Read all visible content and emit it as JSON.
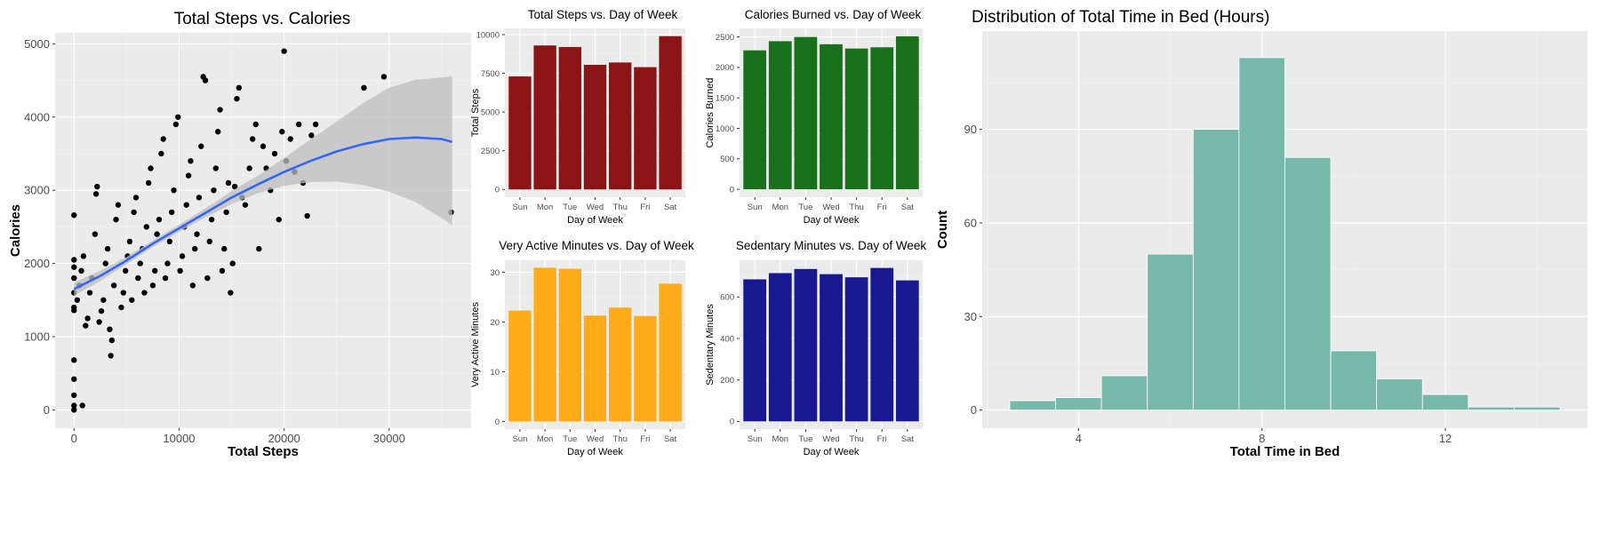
{
  "chart_data": [
    {
      "id": "scatter",
      "type": "scatter",
      "title": "Total Steps vs. Calories",
      "xlabel": "Total Steps",
      "ylabel": "Calories",
      "xlim": [
        -1800,
        37800
      ],
      "ylim": [
        -250,
        5150
      ],
      "xticks": [
        0,
        10000,
        20000,
        30000
      ],
      "yticks": [
        0,
        1000,
        2000,
        3000,
        4000,
        5000
      ],
      "grid": true,
      "point_color": "#000000",
      "smooth_color": "#3366ff",
      "ribbon_color": "#bdbdbd",
      "smooth": [
        {
          "x": 0,
          "y": 1650,
          "lo": 1560,
          "hi": 1740
        },
        {
          "x": 2500,
          "y": 1830,
          "lo": 1760,
          "hi": 1900
        },
        {
          "x": 5000,
          "y": 2040,
          "lo": 1990,
          "hi": 2090
        },
        {
          "x": 7500,
          "y": 2270,
          "lo": 2225,
          "hi": 2315
        },
        {
          "x": 10000,
          "y": 2480,
          "lo": 2430,
          "hi": 2530
        },
        {
          "x": 12500,
          "y": 2690,
          "lo": 2630,
          "hi": 2750
        },
        {
          "x": 15000,
          "y": 2900,
          "lo": 2810,
          "hi": 2990
        },
        {
          "x": 17500,
          "y": 3080,
          "lo": 2960,
          "hi": 3200
        },
        {
          "x": 20000,
          "y": 3250,
          "lo": 3060,
          "hi": 3440
        },
        {
          "x": 22500,
          "y": 3400,
          "lo": 3110,
          "hi": 3690
        },
        {
          "x": 25000,
          "y": 3530,
          "lo": 3120,
          "hi": 3940
        },
        {
          "x": 27500,
          "y": 3630,
          "lo": 3070,
          "hi": 4190
        },
        {
          "x": 30000,
          "y": 3700,
          "lo": 2980,
          "hi": 4400
        },
        {
          "x": 32500,
          "y": 3720,
          "lo": 2840,
          "hi": 4510
        },
        {
          "x": 35000,
          "y": 3700,
          "lo": 2620,
          "hi": 4540
        },
        {
          "x": 36000,
          "y": 3660,
          "lo": 2520,
          "hi": 4560
        }
      ],
      "points": [
        [
          0,
          0
        ],
        [
          0,
          60
        ],
        [
          0,
          200
        ],
        [
          0,
          420
        ],
        [
          0,
          680
        ],
        [
          800,
          60
        ],
        [
          0,
          2660
        ],
        [
          0,
          1360
        ],
        [
          0,
          1400
        ],
        [
          0,
          1600
        ],
        [
          0,
          1800
        ],
        [
          0,
          1950
        ],
        [
          0,
          2050
        ],
        [
          300,
          1500
        ],
        [
          500,
          1700
        ],
        [
          700,
          1900
        ],
        [
          900,
          2100
        ],
        [
          1100,
          1150
        ],
        [
          1300,
          1250
        ],
        [
          1500,
          1600
        ],
        [
          1700,
          1800
        ],
        [
          2000,
          2400
        ],
        [
          2100,
          2950
        ],
        [
          2200,
          3050
        ],
        [
          2400,
          1200
        ],
        [
          2600,
          1350
        ],
        [
          2800,
          1500
        ],
        [
          3000,
          2000
        ],
        [
          3200,
          2200
        ],
        [
          3400,
          1100
        ],
        [
          3500,
          740
        ],
        [
          3600,
          950
        ],
        [
          3800,
          1700
        ],
        [
          4000,
          2600
        ],
        [
          4200,
          2800
        ],
        [
          4500,
          1400
        ],
        [
          4700,
          1600
        ],
        [
          4900,
          1900
        ],
        [
          5100,
          2100
        ],
        [
          5300,
          2300
        ],
        [
          5500,
          1500
        ],
        [
          5700,
          2700
        ],
        [
          5900,
          2900
        ],
        [
          6100,
          1800
        ],
        [
          6300,
          2000
        ],
        [
          6500,
          2200
        ],
        [
          6700,
          1600
        ],
        [
          6900,
          2500
        ],
        [
          7100,
          3100
        ],
        [
          7300,
          3300
        ],
        [
          7500,
          1700
        ],
        [
          7700,
          1900
        ],
        [
          7900,
          2400
        ],
        [
          8100,
          2600
        ],
        [
          8300,
          3500
        ],
        [
          8500,
          3700
        ],
        [
          8700,
          1800
        ],
        [
          8900,
          2000
        ],
        [
          9100,
          2300
        ],
        [
          9300,
          2700
        ],
        [
          9500,
          3000
        ],
        [
          9700,
          3900
        ],
        [
          9900,
          4000
        ],
        [
          10100,
          1900
        ],
        [
          10300,
          2100
        ],
        [
          10500,
          2500
        ],
        [
          10700,
          2800
        ],
        [
          10900,
          3200
        ],
        [
          11100,
          3400
        ],
        [
          11300,
          1700
        ],
        [
          11500,
          2200
        ],
        [
          11700,
          2400
        ],
        [
          11900,
          2900
        ],
        [
          12100,
          3600
        ],
        [
          12300,
          4550
        ],
        [
          12500,
          4500
        ],
        [
          12700,
          1800
        ],
        [
          12900,
          2300
        ],
        [
          13100,
          2600
        ],
        [
          13300,
          3000
        ],
        [
          13500,
          3300
        ],
        [
          13700,
          3800
        ],
        [
          13900,
          4100
        ],
        [
          14100,
          1900
        ],
        [
          14300,
          2200
        ],
        [
          14500,
          2700
        ],
        [
          14700,
          3100
        ],
        [
          14900,
          1600
        ],
        [
          15100,
          2000
        ],
        [
          15300,
          3050
        ],
        [
          15500,
          4250
        ],
        [
          15700,
          4400
        ],
        [
          16000,
          2900
        ],
        [
          16300,
          2800
        ],
        [
          16700,
          3300
        ],
        [
          17000,
          3700
        ],
        [
          17300,
          3900
        ],
        [
          17600,
          2200
        ],
        [
          18000,
          3600
        ],
        [
          18300,
          3300
        ],
        [
          18700,
          3000
        ],
        [
          19100,
          3500
        ],
        [
          19500,
          2600
        ],
        [
          19800,
          3800
        ],
        [
          20000,
          4900
        ],
        [
          20200,
          3400
        ],
        [
          20600,
          3700
        ],
        [
          21000,
          3250
        ],
        [
          21400,
          3900
        ],
        [
          21800,
          3100
        ],
        [
          22200,
          2650
        ],
        [
          22600,
          3750
        ],
        [
          23000,
          3900
        ],
        [
          27600,
          4400
        ],
        [
          29500,
          4550
        ],
        [
          35900,
          2700
        ]
      ]
    },
    {
      "id": "steps",
      "type": "bar",
      "title": "Total Steps vs. Day of Week",
      "xlabel": "Day of Week",
      "ylabel": "Total Steps",
      "categories": [
        "Sun",
        "Mon",
        "Tue",
        "Wed",
        "Thu",
        "Fri",
        "Sat"
      ],
      "values": [
        7300,
        9300,
        9200,
        8050,
        8200,
        7900,
        9900
      ],
      "ylim": [
        -500,
        10400
      ],
      "yticks": [
        0,
        2500,
        5000,
        7500,
        10000
      ],
      "color": "#8b1414",
      "grid": true
    },
    {
      "id": "calories",
      "type": "bar",
      "title": "Calories Burned vs. Day of Week",
      "xlabel": "Day of Week",
      "ylabel": "Calories Burned",
      "categories": [
        "Sun",
        "Mon",
        "Tue",
        "Wed",
        "Thu",
        "Fri",
        "Sat"
      ],
      "values": [
        2280,
        2430,
        2500,
        2380,
        2310,
        2330,
        2510
      ],
      "ylim": [
        -130,
        2640
      ],
      "yticks": [
        0,
        500,
        1000,
        1500,
        2000,
        2500
      ],
      "color": "#18701a",
      "grid": true
    },
    {
      "id": "active",
      "type": "bar",
      "title": "Very Active Minutes vs. Day of Week",
      "xlabel": "Day of Week",
      "ylabel": "Very Active Minutes",
      "categories": [
        "Sun",
        "Mon",
        "Tue",
        "Wed",
        "Thu",
        "Fri",
        "Sat"
      ],
      "values": [
        22.3,
        30.9,
        30.7,
        21.3,
        22.9,
        21.2,
        27.7
      ],
      "ylim": [
        -1.5,
        32.4
      ],
      "yticks": [
        0,
        10,
        20,
        30
      ],
      "color": "#ffab1a",
      "grid": true
    },
    {
      "id": "sedentary",
      "type": "bar",
      "title": "Sedentary Minutes vs. Day of Week",
      "xlabel": "Day of Week",
      "ylabel": "Sedentary Minutes",
      "categories": [
        "Sun",
        "Mon",
        "Tue",
        "Wed",
        "Thu",
        "Fri",
        "Sat"
      ],
      "values": [
        685,
        715,
        735,
        710,
        695,
        740,
        680
      ],
      "ylim": [
        -37,
        777
      ],
      "yticks": [
        0,
        200,
        400,
        600
      ],
      "color": "#181890",
      "grid": true
    },
    {
      "id": "hist",
      "type": "bar",
      "title": "Distribution of Total Time in Bed (Hours)",
      "xlabel": "Total Time in Bed",
      "ylabel": "Count",
      "bins": [
        {
          "from": 2.5,
          "to": 3.5,
          "count": 3
        },
        {
          "from": 3.5,
          "to": 4.5,
          "count": 4
        },
        {
          "from": 4.5,
          "to": 5.5,
          "count": 11
        },
        {
          "from": 5.5,
          "to": 6.5,
          "count": 50
        },
        {
          "from": 6.5,
          "to": 7.5,
          "count": 90
        },
        {
          "from": 7.5,
          "to": 8.5,
          "count": 113
        },
        {
          "from": 8.5,
          "to": 9.5,
          "count": 81
        },
        {
          "from": 9.5,
          "to": 10.5,
          "count": 19
        },
        {
          "from": 10.5,
          "to": 11.5,
          "count": 10
        },
        {
          "from": 11.5,
          "to": 12.5,
          "count": 5
        },
        {
          "from": 12.5,
          "to": 13.5,
          "count": 1
        },
        {
          "from": 13.5,
          "to": 14.5,
          "count": 1
        }
      ],
      "xlim": [
        1.9,
        15.1
      ],
      "ylim": [
        -5.8,
        121.5
      ],
      "xticks": [
        4,
        8,
        12
      ],
      "yticks": [
        0,
        30,
        60,
        90
      ],
      "color": "#76b9aa",
      "edge_color": "#ffffff",
      "grid": true
    }
  ]
}
